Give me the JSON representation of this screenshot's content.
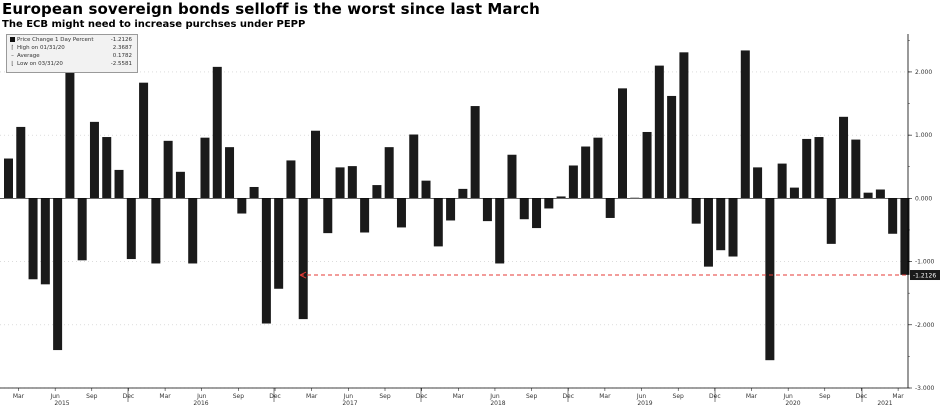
{
  "title": "European sovereign bonds selloff is the worst since last March",
  "subtitle": "The ECB might need to increase purchses under PEPP",
  "legend": {
    "series_label": "Price Change 1 Day Percent",
    "series_value": "-1.2126",
    "high_label": "High on 01/31/20",
    "high_value": "2.3687",
    "average_label": "Average",
    "average_value": "0.1782",
    "low_label": "Low on 03/31/20",
    "low_value": "-2.5581"
  },
  "last_value_label": "-1.2126",
  "colors": {
    "bar": "#1a1a1a",
    "reference_line": "#e53935",
    "last_label_bg": "#1a1a1a"
  },
  "chart_data": {
    "type": "bar",
    "ylabel": "",
    "ylim": [
      -3.0,
      2.6
    ],
    "yticks": [
      -3.0,
      -2.0,
      -1.0,
      0.0,
      1.0,
      2.0
    ],
    "ytick_labels": [
      "-3.000",
      "-2.000",
      "-1.000",
      "0.000",
      "1.000",
      "2.000"
    ],
    "reference_line": -1.2126,
    "x_tick_months": [
      "Mar",
      "Jun",
      "Sep",
      "Dec",
      "Mar",
      "Jun",
      "Sep",
      "Dec",
      "Mar",
      "Jun",
      "Sep",
      "Dec",
      "Mar",
      "Jun",
      "Sep",
      "Dec",
      "Mar",
      "Jun",
      "Sep",
      "Dec",
      "Mar",
      "Jun",
      "Sep",
      "Dec",
      "Mar"
    ],
    "x_tick_years": [
      "2015",
      "2016",
      "2017",
      "2018",
      "2019",
      "2020",
      "2021"
    ],
    "series": [
      {
        "name": "Price Change 1 Day Percent",
        "values": [
          0.63,
          1.13,
          -1.28,
          -1.36,
          -2.4,
          2.2,
          -0.98,
          1.21,
          0.97,
          0.45,
          -0.96,
          1.83,
          -1.03,
          0.91,
          0.42,
          -1.03,
          0.96,
          2.08,
          0.81,
          -0.24,
          0.18,
          -1.98,
          -1.43,
          0.6,
          -1.91,
          1.07,
          -0.55,
          0.49,
          0.51,
          -0.54,
          0.21,
          0.81,
          -0.46,
          1.01,
          0.28,
          -0.76,
          -0.35,
          0.15,
          1.46,
          -0.36,
          -1.03,
          0.69,
          -0.33,
          -0.47,
          -0.16,
          0.03,
          0.52,
          0.82,
          0.96,
          -0.31,
          1.74,
          0.01,
          1.05,
          2.1,
          1.62,
          2.31,
          -0.4,
          -1.08,
          -0.82,
          -0.92,
          2.34,
          0.49,
          -2.56,
          0.55,
          0.17,
          0.94,
          0.97,
          -0.72,
          1.29,
          0.93,
          0.09,
          0.14,
          -0.56,
          -1.21
        ]
      }
    ]
  }
}
